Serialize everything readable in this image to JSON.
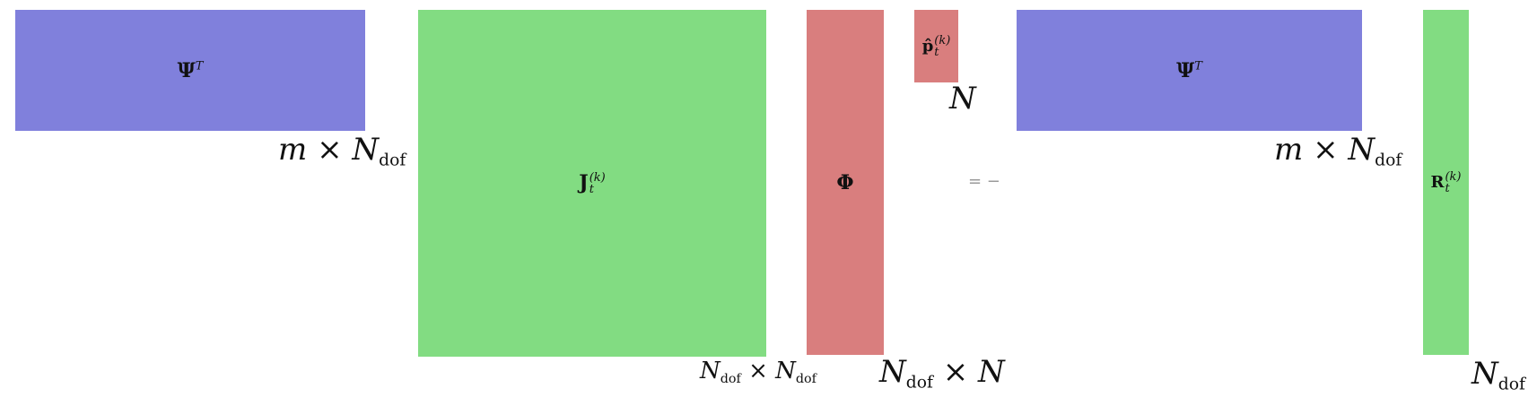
{
  "blocks": {
    "psiT_left": {
      "base": "Ψ",
      "sup": "T"
    },
    "jacobian": {
      "base": "J",
      "sup": "(k)",
      "sub": "t"
    },
    "phi": {
      "base": "Φ"
    },
    "p_hat": {
      "base": "p̂",
      "sup": "(k)",
      "sub": "t"
    },
    "psiT_right": {
      "base": "Ψ",
      "sup": "T"
    },
    "residual": {
      "base": "R",
      "sup": "(k)",
      "sub": "t"
    }
  },
  "dims": {
    "psiT_left": {
      "a": "m",
      "times": "×",
      "b": "N",
      "b_sub": "dof"
    },
    "jacobian": {
      "a": "N",
      "a_sub": "dof",
      "times": "×",
      "b": "N",
      "b_sub": "dof"
    },
    "phi": {
      "a": "N",
      "a_sub": "dof",
      "times": "×",
      "b": "N"
    },
    "p_hat": {
      "a": "N"
    },
    "psiT_right": {
      "a": "m",
      "times": "×",
      "b": "N",
      "b_sub": "dof"
    },
    "residual": {
      "a": "N",
      "a_sub": "dof"
    }
  },
  "operator": "= −",
  "colors": {
    "blue": "#8080dc",
    "green": "#82dc82",
    "red": "#d97e7e"
  }
}
